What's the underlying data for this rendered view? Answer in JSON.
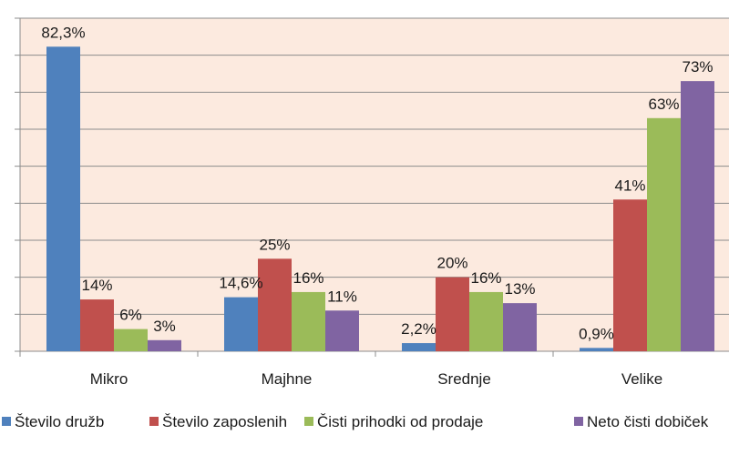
{
  "chart_data": {
    "type": "bar",
    "categories": [
      "Mikro",
      "Majhne",
      "Srednje",
      "Velike"
    ],
    "series": [
      {
        "name": "Število družb",
        "color": "#4F81BD",
        "values": [
          82.3,
          14.6,
          2.2,
          0.9
        ],
        "labels": [
          "82,3%",
          "14,6%",
          "2,2%",
          "0,9%"
        ]
      },
      {
        "name": "Število zaposlenih",
        "color": "#C0504D",
        "values": [
          14,
          25,
          20,
          41
        ],
        "labels": [
          "14%",
          "25%",
          "20%",
          "41%"
        ]
      },
      {
        "name": "Čisti prihodki od prodaje",
        "color": "#9BBB59",
        "values": [
          6,
          16,
          16,
          63
        ],
        "labels": [
          "6%",
          "16%",
          "16%",
          "63%"
        ]
      },
      {
        "name": "Neto čisti dobiček",
        "color": "#8064A2",
        "values": [
          3,
          11,
          13,
          73
        ],
        "labels": [
          "3%",
          "11%",
          "13%",
          "73%"
        ]
      }
    ],
    "ylim": [
      0,
      90
    ],
    "grid": true,
    "plot_background": "#FCEADF",
    "legend_position": "bottom"
  }
}
